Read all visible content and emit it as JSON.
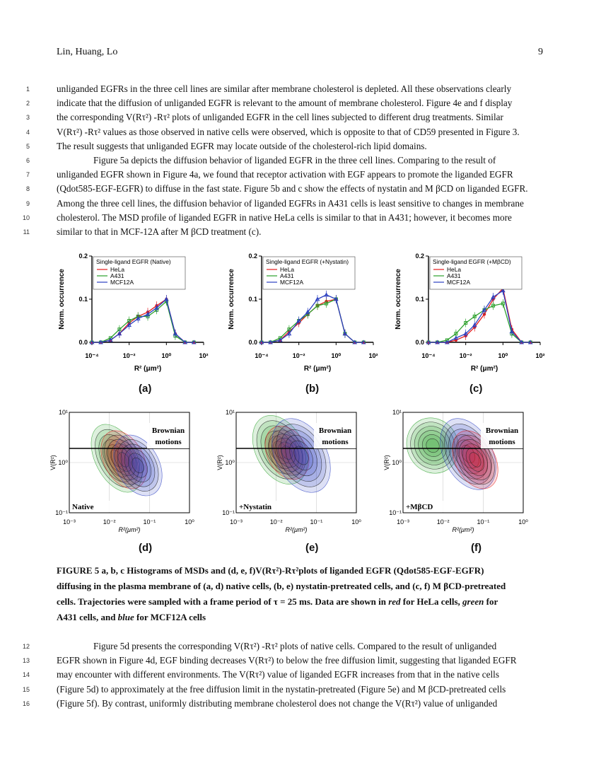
{
  "header": {
    "authors": "Lin, Huang, Lo",
    "page_number": "9"
  },
  "lines_top": [
    {
      "n": "1",
      "t": "unliganded EGFRs in the three cell lines are similar after membrane cholesterol is depleted.  All these observations clearly"
    },
    {
      "n": "2",
      "t": "indicate that the diffusion of unliganded EGFR is relevant to the amount of membrane cholesterol.  Figure 4e and f display"
    },
    {
      "n": "3",
      "t": "the corresponding V(Rτ²) -Rτ² plots of unliganded EGFR in the cell lines subjected to different drug treatments.  Similar"
    },
    {
      "n": "4",
      "t": "V(Rτ²) -Rτ² values as those observed in native cells were observed, which is opposite to that of CD59 presented in Figure 3."
    },
    {
      "n": "5",
      "t": "The result suggests that unliganded EGFR may locate outside of the cholesterol-rich lipid domains."
    },
    {
      "n": "6",
      "t": "Figure 5a depicts the diffusion behavior of liganded EGFR in the three cell lines.  Comparing to the result of",
      "indent": true
    },
    {
      "n": "7",
      "t": "unliganded EGFR shown in Figure 4a, we found that receptor activation with EGF appears to promote the liganded EGFR"
    },
    {
      "n": "8",
      "t": "(Qdot585-EGF-EGFR) to diffuse in the fast state. Figure 5b and c show the effects of nystatin and M βCD on liganded EGFR."
    },
    {
      "n": "9",
      "t": "Among the three cell lines, the diffusion behavior of liganded EGFRs in A431 cells is least sensitive to changes in membrane"
    },
    {
      "n": "10",
      "t": "cholesterol.  The MSD profile of liganded EGFR in native HeLa cells is similar to that in A431; however, it becomes more"
    },
    {
      "n": "11",
      "t": "similar to that in MCF-12A after M βCD treatment (c)."
    }
  ],
  "lines_bottom": [
    {
      "n": "12",
      "t": "Figure 5d presents the corresponding V(Rτ²) -Rτ² plots of native cells.  Compared to the result of unliganded",
      "indent": true
    },
    {
      "n": "13",
      "t": "EGFR shown in Figure 4d, EGF binding decreases V(Rτ²) to below the free diffusion limit, suggesting that liganded EGFR"
    },
    {
      "n": "14",
      "t": "may encounter with different environments.  The  V(Rτ²) value of liganded EGFR increases from that in the native cells"
    },
    {
      "n": "15",
      "t": "(Figure 5d) to approximately at the free diffusion limit in the nystatin-pretreated (Figure 5e) and M βCD-pretreated cells"
    },
    {
      "n": "16",
      "t": "(Figure 5f).  By contrast, uniformly distributing membrane cholesterol does not change the V(Rτ²) value of unliganded"
    }
  ],
  "caption": {
    "line1": "FIGURE 5 a, b, c Histograms of MSDs and (d, e, f)V(Rτ²)-Rτ²plots of liganded EGFR (Qdot585-EGF-EGFR)",
    "line2": "diffusing in the plasma membrane of (a, d) native cells, (b, e) nystatin-pretreated cells, and (c, f) M βCD-pretreated",
    "line3": "cells.  Trajectories were sampled with a frame period of τ = 25 ms.  Data are shown in ",
    "red": "red",
    "line3b": " for HeLa cells, ",
    "green": "green",
    "line3c": " for",
    "line4a": "A431 cells, and ",
    "blue": "blue",
    "line4b": " for MCF12A cells"
  },
  "colors": {
    "hela": "#e41a1c",
    "a431": "#2ca02c",
    "mcf12a": "#2b3fc0"
  },
  "histogram_common": {
    "ylabel": "Norm. occurrence",
    "xlabel": "R² (μm²)",
    "yticks": [
      "0.0",
      "0.1",
      "0.2"
    ],
    "xticks": [
      "10⁻⁴",
      "10⁻²",
      "10⁰",
      "10²"
    ],
    "legend": [
      "HeLa",
      "A431",
      "MCF12A"
    ]
  },
  "contour_common": {
    "ylabel": "V(R²)",
    "xlabel": "R²(μm²)",
    "yticks": [
      "10¹",
      "10⁰",
      "10⁻¹"
    ],
    "xticks": [
      "10⁻³",
      "10⁻²",
      "10⁻¹",
      "10⁰"
    ],
    "region_label_1": "Brownian",
    "region_label_2": "motions"
  },
  "panels": {
    "a": {
      "label": "(a)",
      "title": "Single-ligand EGFR (Native)"
    },
    "b": {
      "label": "(b)",
      "title": "Single-ligand EGFR (+Nystatin)"
    },
    "c": {
      "label": "(c)",
      "title": "Single-ligand EGFR (+MβCD)"
    },
    "d": {
      "label": "(d)",
      "treatment": "Native"
    },
    "e": {
      "label": "(e)",
      "treatment": "+Nystatin"
    },
    "f": {
      "label": "(f)",
      "treatment": "+MβCD"
    }
  },
  "chart_data": [
    {
      "type": "line",
      "title": "Single-ligand EGFR (Native)",
      "xlabel": "R² (μm²)",
      "ylabel": "Norm. occurrence",
      "x_scale": "log",
      "xlim": [
        0.0001,
        100
      ],
      "ylim": [
        0,
        0.2
      ],
      "x": [
        0.0001,
        0.0003,
        0.001,
        0.003,
        0.01,
        0.03,
        0.1,
        0.3,
        1,
        3,
        10,
        30
      ],
      "series": [
        {
          "name": "HeLa",
          "values": [
            0.0,
            0.0,
            0.005,
            0.02,
            0.045,
            0.06,
            0.07,
            0.085,
            0.1,
            0.02,
            0.0,
            0.0
          ]
        },
        {
          "name": "A431",
          "values": [
            0.0,
            0.0,
            0.01,
            0.03,
            0.05,
            0.06,
            0.06,
            0.075,
            0.095,
            0.015,
            0.0,
            0.0
          ]
        },
        {
          "name": "MCF12A",
          "values": [
            0.0,
            0.0,
            0.005,
            0.02,
            0.04,
            0.055,
            0.065,
            0.08,
            0.1,
            0.02,
            0.0,
            0.0
          ]
        }
      ]
    },
    {
      "type": "line",
      "title": "Single-ligand EGFR (+Nystatin)",
      "xlabel": "R² (μm²)",
      "ylabel": "Norm. occurrence",
      "x_scale": "log",
      "xlim": [
        0.0001,
        100
      ],
      "ylim": [
        0,
        0.2
      ],
      "x": [
        0.0001,
        0.0003,
        0.001,
        0.003,
        0.01,
        0.03,
        0.1,
        0.3,
        1,
        3,
        10,
        30
      ],
      "series": [
        {
          "name": "HeLa",
          "values": [
            0.0,
            0.0,
            0.005,
            0.025,
            0.045,
            0.065,
            0.085,
            0.095,
            0.1,
            0.02,
            0.0,
            0.0
          ]
        },
        {
          "name": "A431",
          "values": [
            0.0,
            0.0,
            0.01,
            0.03,
            0.05,
            0.065,
            0.085,
            0.09,
            0.1,
            0.02,
            0.0,
            0.0
          ]
        },
        {
          "name": "MCF12A",
          "values": [
            0.0,
            0.0,
            0.005,
            0.02,
            0.05,
            0.07,
            0.1,
            0.11,
            0.1,
            0.02,
            0.0,
            0.0
          ]
        }
      ]
    },
    {
      "type": "line",
      "title": "Single-ligand EGFR (+MβCD)",
      "xlabel": "R² (μm²)",
      "ylabel": "Norm. occurrence",
      "x_scale": "log",
      "xlim": [
        0.0001,
        100
      ],
      "ylim": [
        0,
        0.2
      ],
      "x": [
        0.0001,
        0.0003,
        0.001,
        0.003,
        0.01,
        0.03,
        0.1,
        0.3,
        1,
        3,
        10,
        30
      ],
      "series": [
        {
          "name": "HeLa",
          "values": [
            0.0,
            0.0,
            0.0,
            0.005,
            0.015,
            0.035,
            0.065,
            0.1,
            0.125,
            0.03,
            0.0,
            0.0
          ]
        },
        {
          "name": "A431",
          "values": [
            0.0,
            0.0,
            0.005,
            0.02,
            0.045,
            0.06,
            0.075,
            0.085,
            0.09,
            0.02,
            0.0,
            0.0
          ]
        },
        {
          "name": "MCF12A",
          "values": [
            0.0,
            0.0,
            0.0,
            0.01,
            0.02,
            0.04,
            0.075,
            0.105,
            0.12,
            0.025,
            0.0,
            0.0
          ]
        }
      ]
    }
  ]
}
